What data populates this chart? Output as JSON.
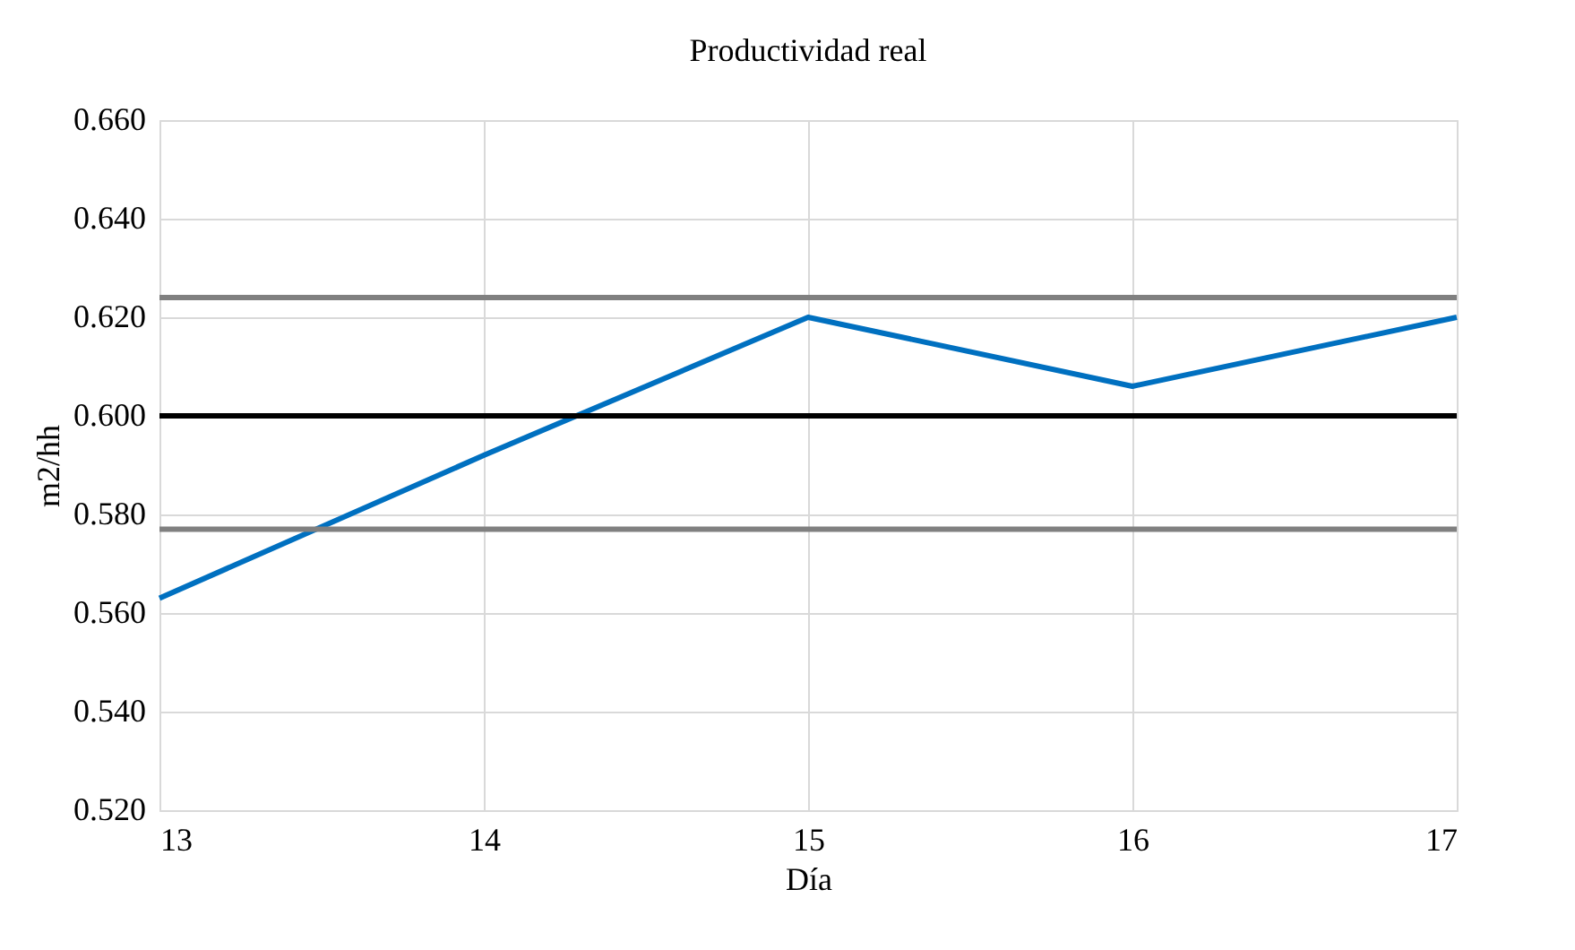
{
  "chart_data": {
    "type": "line",
    "title": "Productividad real",
    "xlabel": "Día",
    "ylabel": "m2/hh",
    "x": [
      13,
      14,
      15,
      16,
      17
    ],
    "series": [
      {
        "color": "#0070c0",
        "values": [
          0.563,
          0.592,
          0.62,
          0.606,
          0.62
        ]
      }
    ],
    "xlim": [
      13,
      17
    ],
    "xticks": [
      13,
      14,
      15,
      16,
      17
    ],
    "ylim": [
      0.52,
      0.66
    ],
    "yticks": [
      {
        "value": 0.52,
        "label": "0.520"
      },
      {
        "value": 0.54,
        "label": "0.540"
      },
      {
        "value": 0.56,
        "label": "0.560"
      },
      {
        "value": 0.58,
        "label": "0.580"
      },
      {
        "value": 0.6,
        "label": "0.600"
      },
      {
        "value": 0.62,
        "label": "0.620"
      },
      {
        "value": 0.64,
        "label": "0.640"
      },
      {
        "value": 0.66,
        "label": "0.660"
      }
    ],
    "ref_lines": [
      {
        "axis": "y",
        "value": 0.624,
        "color": "#808080"
      },
      {
        "axis": "y",
        "value": 0.6,
        "color": "#000000"
      },
      {
        "axis": "y",
        "value": 0.577,
        "color": "#808080"
      }
    ],
    "grid": true,
    "marker": "none"
  }
}
